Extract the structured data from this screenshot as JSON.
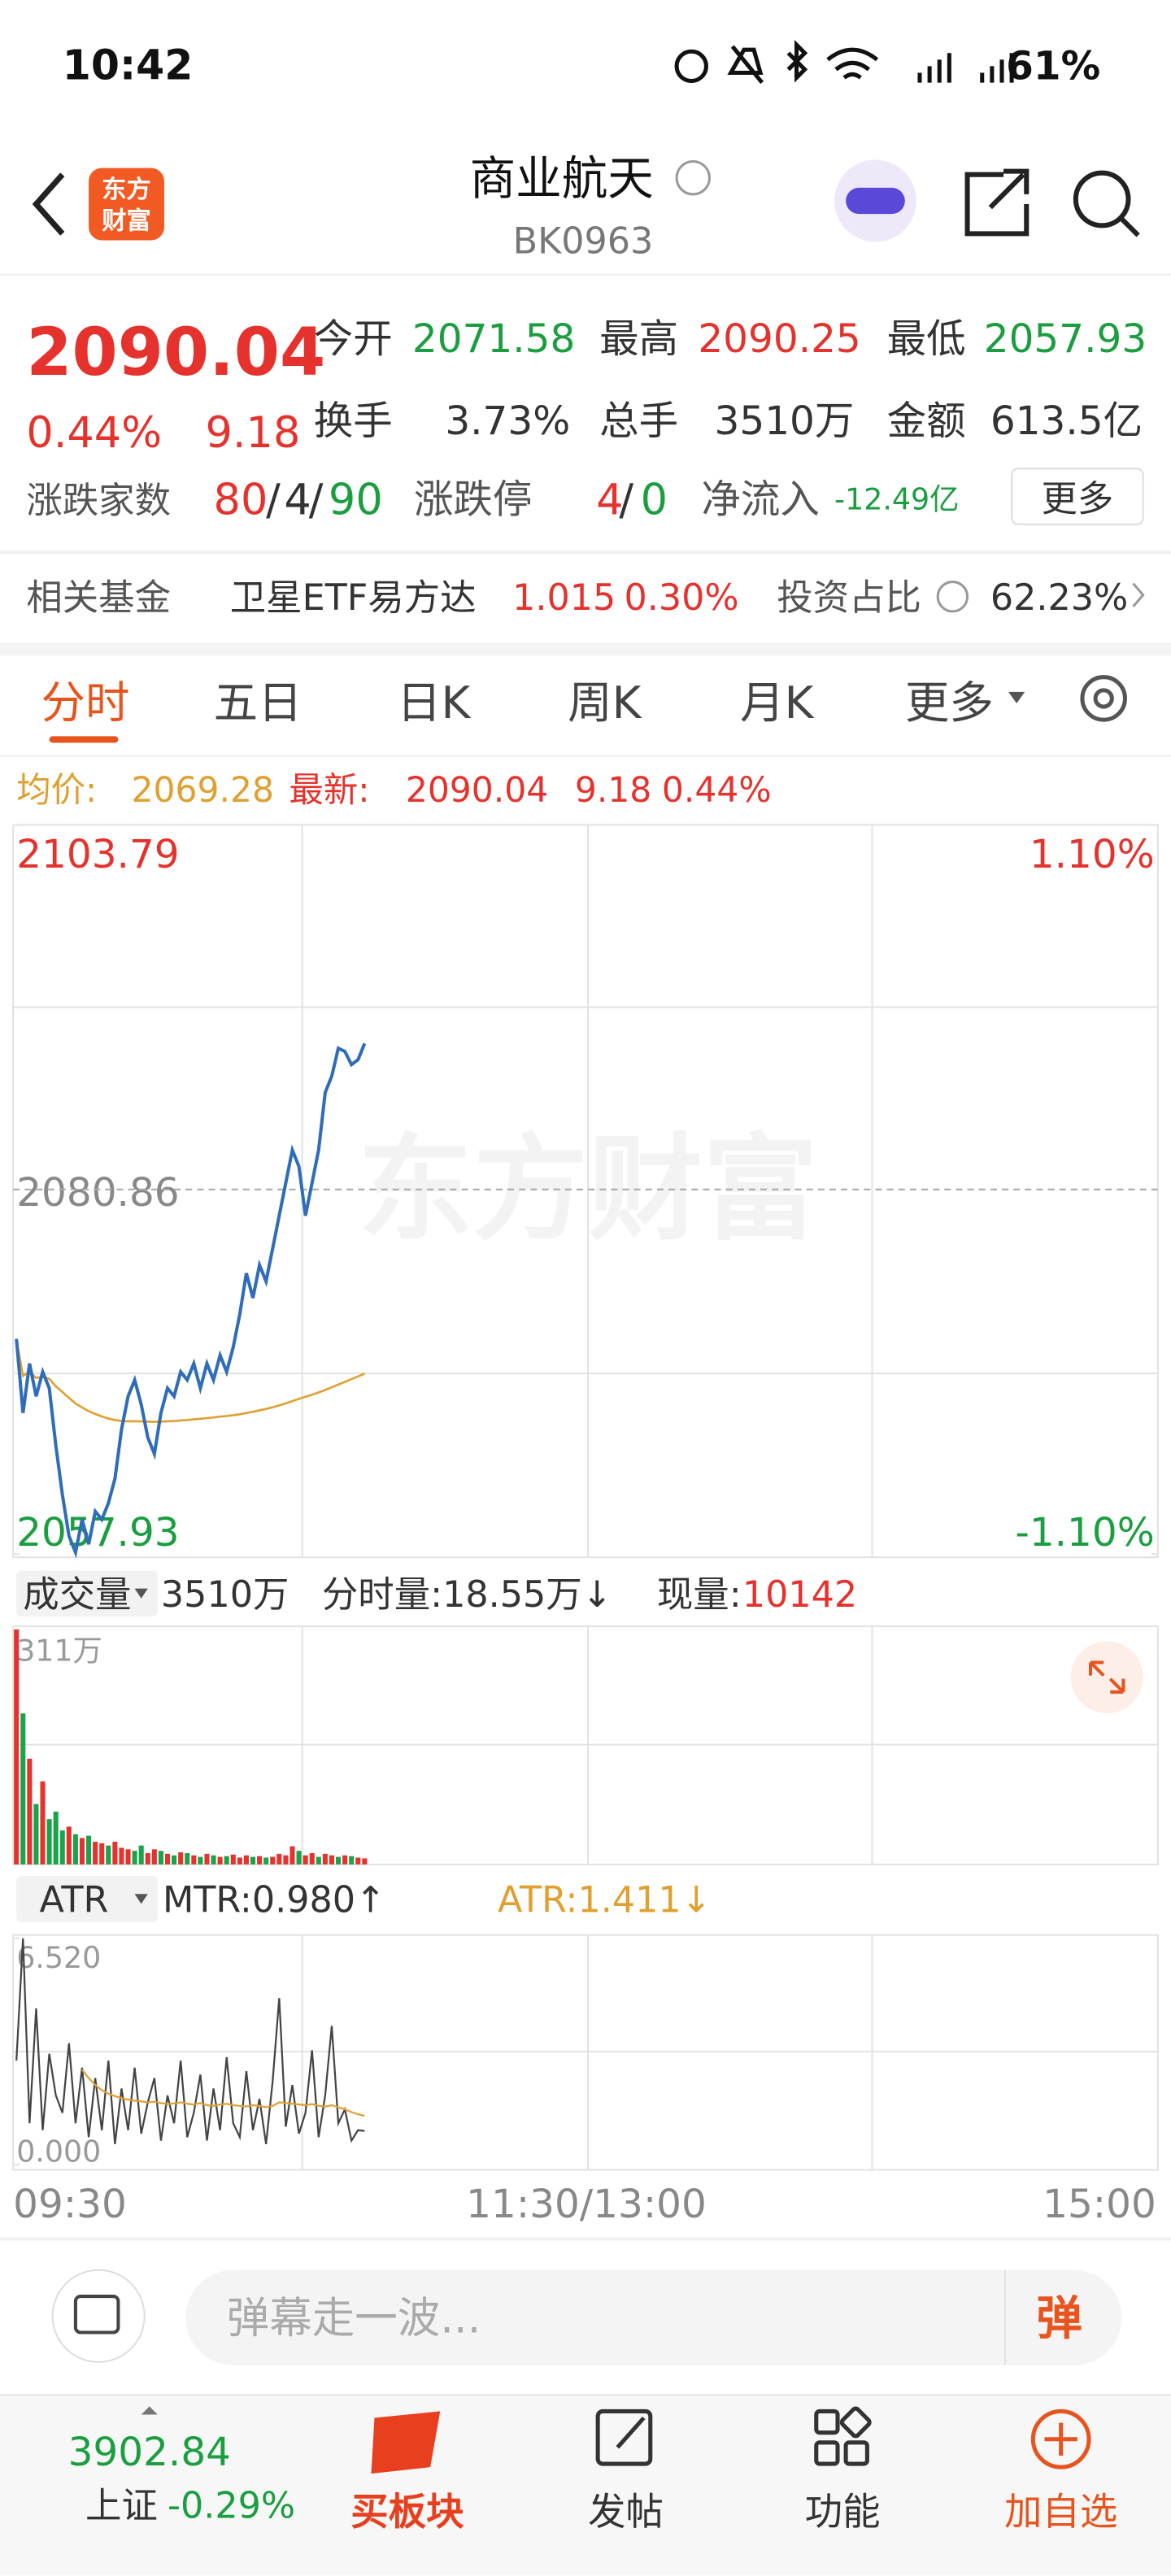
{
  "status": {
    "time": "10:42",
    "battery": "61%"
  },
  "header": {
    "logo_top": "东方",
    "logo_bottom": "财富",
    "title": "商业航天",
    "code": "BK0963"
  },
  "quote": {
    "price": "2090.04",
    "change_pct": "0.44%",
    "change": "9.18",
    "open_label": "今开",
    "open": "2071.58",
    "high_label": "最高",
    "high": "2090.25",
    "low_label": "最低",
    "low": "2057.93",
    "turnover_label": "换手",
    "turnover": "3.73%",
    "volume_label": "总手",
    "volume": "3510万",
    "amount_label": "金额",
    "amount": "613.5亿",
    "breadth_label": "涨跌家数",
    "breadth_up": "80",
    "separator": "/",
    "breadth_flat": "4",
    "breadth_down": "90",
    "limit_label": "涨跌停",
    "limit_up": "4",
    "limit_down": "0",
    "inflow_label": "净流入",
    "inflow": "-12.49亿",
    "more": "更多"
  },
  "fund": {
    "label": "相关基金",
    "name": "卫星ETF易方达",
    "price": "1.015",
    "pct": "0.30%",
    "ratio_label": "投资占比",
    "ratio": "62.23%"
  },
  "tabs": [
    "分时",
    "五日",
    "日K",
    "周K",
    "月K",
    "更多"
  ],
  "legend": {
    "avg": "2069.28",
    "latest": "2090.04",
    "change": "9.18",
    "pct": "0.44%"
  },
  "watermark": "东方财富",
  "chart_data": [
    {
      "type": "line",
      "ylim": [
        2057.93,
        2103.79
      ],
      "yticks": [
        2057.93,
        2080.86,
        2103.79
      ],
      "y2lim": [
        -1.1,
        1.1
      ],
      "y2ticks": [
        {
          "value": -1.1,
          "label": "-1.10%"
        },
        {
          "value": 1.1,
          "label": "1.10%"
        }
      ],
      "x_labels": [
        "09:30",
        "11:30/13:00",
        "15:00"
      ],
      "series": [
        {
          "name": "最新:",
          "color": "#2f6db8",
          "values": [
            2071.46,
            2066.81,
            2069.91,
            2067.85,
            2069.39,
            2068.36,
            2064.75,
            2061.65,
            2059.07,
            2058.03,
            2060.1,
            2058.55,
            2060.61,
            2060.1,
            2061.13,
            2062.68,
            2065.78,
            2067.85,
            2068.88,
            2067.33,
            2065.26,
            2064.23,
            2066.81,
            2068.36,
            2067.85,
            2069.39,
            2068.88,
            2069.91,
            2068.36,
            2069.91,
            2068.88,
            2070.43,
            2069.39,
            2070.94,
            2073.01,
            2075.59,
            2074.04,
            2076.11,
            2075.08,
            2077.14,
            2079.21,
            2081.27,
            2083.34,
            2082.31,
            2079.21,
            2081.27,
            2083.34,
            2086.95,
            2087.99,
            2089.74,
            2089.54,
            2088.71,
            2089.02,
            2090.04
          ]
        },
        {
          "name": "均价:",
          "color": "#e0a030",
          "values": [
            2071.46,
            2069.14,
            2069.4,
            2069.01,
            2069.09,
            2068.95,
            2068.48,
            2068.12,
            2067.75,
            2067.4,
            2067.15,
            2066.92,
            2066.74,
            2066.58,
            2066.45,
            2066.36,
            2066.3,
            2066.28,
            2066.28,
            2066.27,
            2066.26,
            2066.25,
            2066.26,
            2066.28,
            2066.3,
            2066.33,
            2066.36,
            2066.4,
            2066.44,
            2066.48,
            2066.52,
            2066.57,
            2066.61,
            2066.66,
            2066.72,
            2066.8,
            2066.88,
            2066.97,
            2067.06,
            2067.16,
            2067.28,
            2067.41,
            2067.55,
            2067.69,
            2067.82,
            2067.95,
            2068.09,
            2068.25,
            2068.42,
            2068.59,
            2068.76,
            2068.93,
            2069.1,
            2069.28
          ]
        }
      ]
    },
    {
      "type": "bar",
      "selector": "成交量",
      "total": "3510万",
      "minute_volume": "分时量:18.55万↓",
      "current_label": "现量:",
      "current": "10142",
      "ylim": [
        0,
        311
      ],
      "yticks": [
        {
          "value": 311,
          "label": "311万"
        }
      ],
      "values": [
        311,
        200,
        140,
        80,
        110,
        60,
        70,
        45,
        50,
        40,
        35,
        38,
        30,
        28,
        25,
        30,
        22,
        20,
        18,
        25,
        15,
        20,
        18,
        14,
        12,
        16,
        15,
        12,
        10,
        14,
        12,
        10,
        11,
        13,
        9,
        12,
        10,
        11,
        9,
        10,
        14,
        12,
        24,
        18,
        12,
        15,
        10,
        14,
        12,
        10,
        12,
        11,
        9,
        8
      ],
      "colors": [
        "#e5322d",
        "#1aa34a",
        "#e5322d",
        "#1aa34a",
        "#e5322d",
        "#1aa34a",
        "#1aa34a",
        "#1aa34a",
        "#e5322d",
        "#1aa34a",
        "#e5322d",
        "#1aa34a",
        "#e5322d",
        "#e5322d",
        "#1aa34a",
        "#e5322d",
        "#e5322d",
        "#e5322d",
        "#1aa34a",
        "#1aa34a",
        "#e5322d",
        "#e5322d",
        "#1aa34a",
        "#e5322d",
        "#1aa34a",
        "#e5322d",
        "#1aa34a",
        "#e5322d",
        "#1aa34a",
        "#e5322d",
        "#1aa34a",
        "#e5322d",
        "#1aa34a",
        "#e5322d",
        "#e5322d",
        "#e5322d",
        "#1aa34a",
        "#e5322d",
        "#1aa34a",
        "#e5322d",
        "#e5322d",
        "#e5322d",
        "#e5322d",
        "#1aa34a",
        "#e5322d",
        "#e5322d",
        "#1aa34a",
        "#e5322d",
        "#e5322d",
        "#1aa34a",
        "#e5322d",
        "#1aa34a",
        "#e5322d",
        "#e5322d"
      ]
    },
    {
      "type": "line",
      "selector": "ATR",
      "ylim": [
        0,
        6.52
      ],
      "yticks": [
        {
          "value": 0,
          "label": "0.000"
        },
        {
          "value": 6.52,
          "label": "6.520"
        }
      ],
      "series": [
        {
          "name": "MTR:0.980↑",
          "color": "#444444",
          "values": [
            3.0,
            6.52,
            1.2,
            4.5,
            1.0,
            3.2,
            2.0,
            1.5,
            3.5,
            1.2,
            2.8,
            0.8,
            2.5,
            1.0,
            3.0,
            0.6,
            2.2,
            1.0,
            2.8,
            0.9,
            1.8,
            2.5,
            0.7,
            2.0,
            1.2,
            3.0,
            0.8,
            1.5,
            2.6,
            0.7,
            2.2,
            1.0,
            3.1,
            1.2,
            0.8,
            2.7,
            1.0,
            1.9,
            0.6,
            2.4,
            4.8,
            1.1,
            2.3,
            0.9,
            1.5,
            3.3,
            0.8,
            2.0,
            4.0,
            1.2,
            1.6,
            0.7,
            1.0,
            0.98
          ]
        },
        {
          "name": "ATR:1.411↓",
          "color": "#e0a030",
          "values": [
            null,
            null,
            null,
            null,
            null,
            null,
            null,
            null,
            null,
            null,
            2.74,
            2.5,
            2.3,
            2.15,
            2.05,
            1.98,
            1.92,
            1.88,
            1.85,
            1.83,
            1.8,
            1.82,
            1.78,
            1.75,
            1.77,
            1.8,
            1.76,
            1.74,
            1.78,
            1.72,
            1.7,
            1.74,
            1.76,
            1.72,
            1.7,
            1.68,
            1.72,
            1.7,
            1.66,
            1.7,
            1.8,
            1.78,
            1.76,
            1.74,
            1.72,
            1.75,
            1.7,
            1.68,
            1.72,
            1.66,
            1.6,
            1.52,
            1.46,
            1.411
          ]
        }
      ]
    }
  ],
  "comment": {
    "placeholder": "弹幕走一波...",
    "button": "弹"
  },
  "index": {
    "value": "3902.84",
    "name": "上证",
    "pct": "-0.29%"
  },
  "nav": [
    "买板块",
    "发帖",
    "功能",
    "加自选"
  ]
}
